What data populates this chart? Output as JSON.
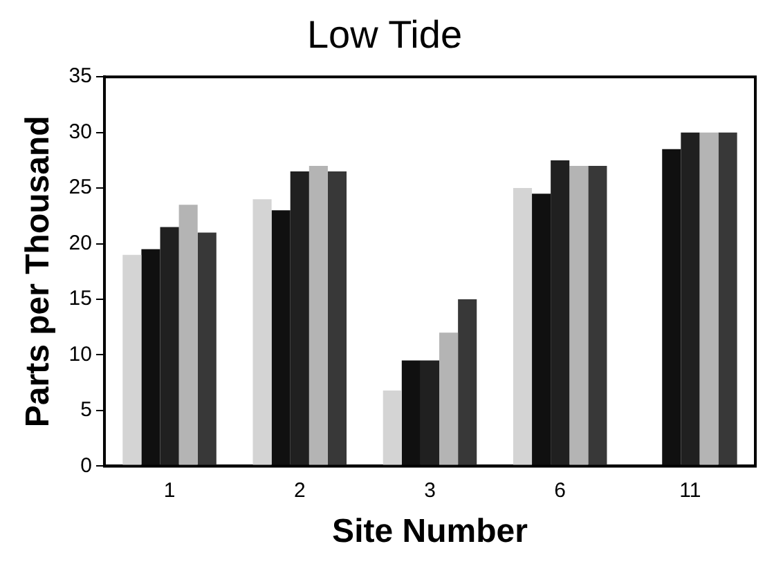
{
  "chart_data": {
    "type": "bar",
    "title": "Low Tide",
    "xlabel": "Site Number",
    "ylabel": "Parts per Thousand",
    "categories": [
      "1",
      "2",
      "3",
      "6",
      "11"
    ],
    "series": [
      {
        "color": "#d4d4d4",
        "values": [
          19,
          24,
          6.8,
          25,
          null
        ]
      },
      {
        "color": "#101010",
        "values": [
          19.5,
          23,
          9.5,
          24.5,
          28.5
        ]
      },
      {
        "color": "#202020",
        "values": [
          21.5,
          26.5,
          9.5,
          27.5,
          30
        ]
      },
      {
        "color": "#b4b4b4",
        "values": [
          23.5,
          27,
          12,
          27,
          30
        ]
      },
      {
        "color": "#383838",
        "values": [
          21,
          26.5,
          15,
          27,
          30
        ]
      }
    ],
    "ylim": [
      0,
      35
    ],
    "yticks": [
      0,
      5,
      10,
      15,
      20,
      25,
      30,
      35
    ],
    "grid": false,
    "legend": false
  }
}
